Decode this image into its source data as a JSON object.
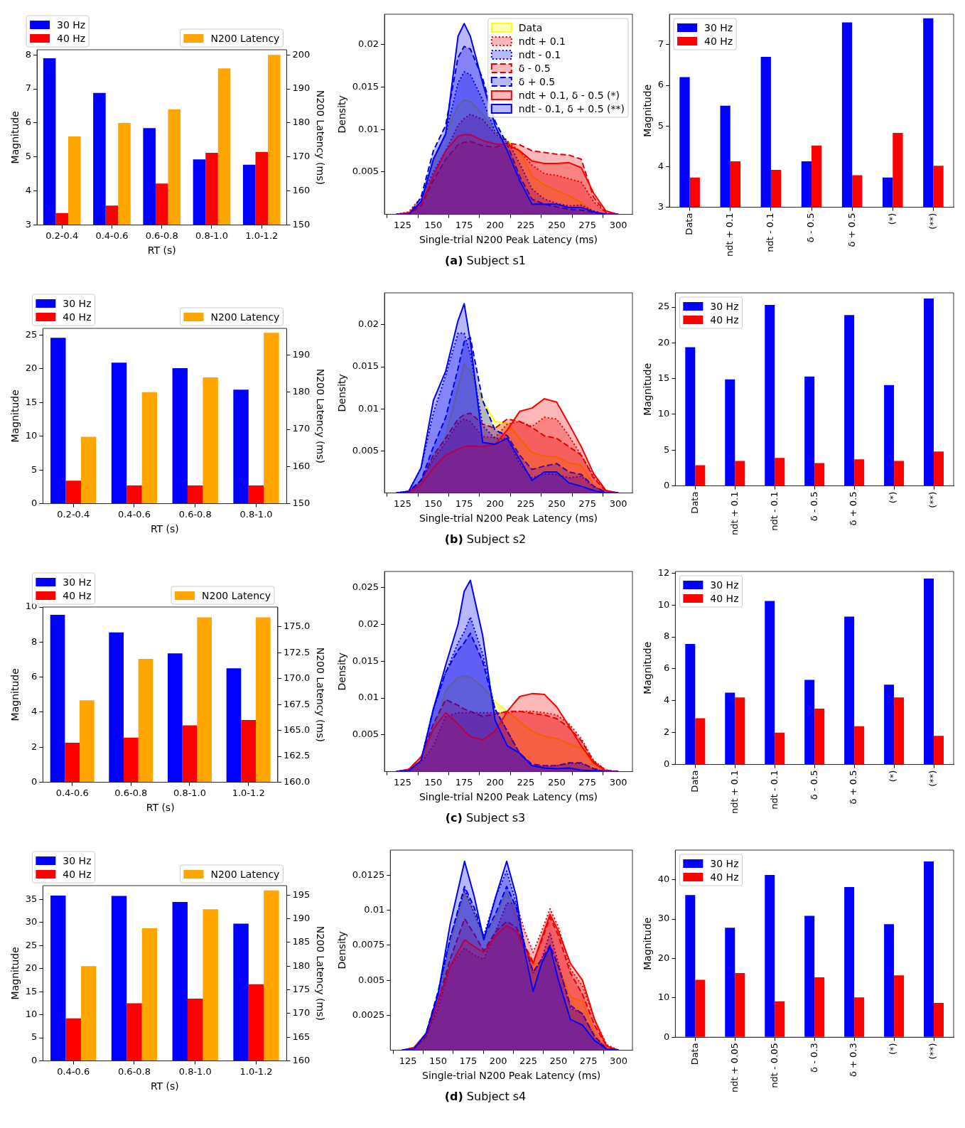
{
  "chart_data": [
    {
      "type": "bar",
      "categories": [
        "0.2-0.4",
        "0.4-0.6",
        "0.6-0.8",
        "0.8-1.0",
        "1.0-1.2"
      ],
      "xlabel": "RT (s)",
      "ylabel": "Magnitude",
      "y2label": "N200 Latency (ms)",
      "series": [
        {
          "name": "30 Hz",
          "color": "#0000ff",
          "values": [
            7.9,
            6.88,
            5.85,
            4.93,
            4.77
          ]
        },
        {
          "name": "40 Hz",
          "color": "#ff0000",
          "values": [
            3.35,
            3.57,
            4.22,
            5.12,
            5.15
          ]
        },
        {
          "name": "N200 Latency",
          "color": "#ffa500",
          "axis": "y2",
          "values": [
            176,
            180,
            184,
            196,
            200
          ]
        }
      ],
      "ylim": [
        3,
        8.15
      ],
      "yticks": [
        3,
        4,
        5,
        6,
        7,
        8
      ],
      "y2lim": [
        150,
        201.5
      ],
      "y2ticks": [
        150,
        160,
        170,
        180,
        190,
        200
      ],
      "legend": "top"
    },
    {
      "type": "area",
      "x": [
        120,
        130,
        140,
        150,
        160,
        170,
        175,
        180,
        190,
        200,
        210,
        220,
        230,
        240,
        250,
        260,
        270,
        280,
        290,
        300
      ],
      "xlabel": "Single-trial N200 Peak Latency (ms)",
      "ylabel": "Density",
      "series": [
        {
          "name": "Data",
          "color": "#ffff00",
          "line_style": "solid",
          "values": [
            0,
            0.0001,
            0.0015,
            0.006,
            0.0095,
            0.0128,
            0.0135,
            0.0133,
            0.0118,
            0.0098,
            0.0087,
            0.0075,
            0.0045,
            0.0035,
            0.0028,
            0.0022,
            0.0014,
            0.0003,
            0,
            0
          ]
        },
        {
          "name": "ndt + 0.1",
          "color": "#ee0000",
          "line_style": "dotted",
          "values": [
            0,
            0.0003,
            0.002,
            0.005,
            0.0075,
            0.0105,
            0.0113,
            0.0118,
            0.0112,
            0.0095,
            0.0085,
            0.0075,
            0.0058,
            0.0048,
            0.0046,
            0.0042,
            0.0038,
            0.0015,
            0.0002,
            0
          ]
        },
        {
          "name": "ndt - 0.1",
          "color": "#0000ee",
          "line_style": "dotted",
          "values": [
            0,
            0,
            0.0015,
            0.0065,
            0.0095,
            0.0155,
            0.0168,
            0.0165,
            0.0135,
            0.0098,
            0.0087,
            0.006,
            0.003,
            0.0018,
            0.0013,
            0.001,
            0.0011,
            0.0004,
            0,
            0
          ]
        },
        {
          "name": "δ - 0.5",
          "color": "#dd0000",
          "line_style": "dashed",
          "values": [
            0,
            0.0001,
            0.001,
            0.004,
            0.0065,
            0.0082,
            0.0085,
            0.0086,
            0.0081,
            0.0079,
            0.0084,
            0.0082,
            0.0075,
            0.0073,
            0.0071,
            0.007,
            0.0065,
            0.002,
            0.0002,
            0
          ]
        },
        {
          "name": "δ + 0.5",
          "color": "#0000dd",
          "line_style": "dashed",
          "values": [
            0,
            0,
            0.002,
            0.0075,
            0.0105,
            0.0185,
            0.0198,
            0.0195,
            0.016,
            0.011,
            0.0082,
            0.0045,
            0.0018,
            0.0012,
            0.0009,
            0.0006,
            0.0005,
            0.0002,
            0,
            0
          ]
        },
        {
          "name": "ndt + 0.1, δ - 0.5 (*)",
          "color": "#ff0000",
          "line_style": "solid",
          "values": [
            0,
            0.0002,
            0.0012,
            0.0045,
            0.0075,
            0.0092,
            0.0094,
            0.0094,
            0.0087,
            0.0083,
            0.0082,
            0.0075,
            0.0063,
            0.006,
            0.006,
            0.0061,
            0.0055,
            0.0025,
            0.0004,
            0
          ]
        },
        {
          "name": "ndt - 0.1, δ + 0.5 (**)",
          "color": "#0000ff",
          "line_style": "solid",
          "values": [
            0,
            0,
            0.0015,
            0.0065,
            0.0095,
            0.021,
            0.0225,
            0.021,
            0.0155,
            0.0105,
            0.0075,
            0.004,
            0.0012,
            0.0012,
            0.0012,
            0.0008,
            0.0008,
            0.0003,
            0,
            0
          ]
        }
      ],
      "xlim": [
        110.3,
        311.5
      ],
      "xticks": [
        125,
        150,
        175,
        200,
        225,
        250,
        275,
        300
      ],
      "ylim": [
        0,
        0.0236
      ],
      "yticks": [
        0.005,
        0.01,
        0.015,
        0.02
      ],
      "legend": "top right",
      "annotations": [
        "(a) Subject s1"
      ]
    },
    {
      "type": "bar",
      "categories": [
        "Data",
        "ndt + 0.1",
        "ndt - 0.1",
        "δ - 0.5",
        "δ + 0.5",
        "(*)",
        "(**)"
      ],
      "ylabel": "Magnitude",
      "series": [
        {
          "name": "30 Hz",
          "color": "#0000ff",
          "values": [
            6.2,
            5.5,
            6.7,
            4.13,
            7.55,
            3.73,
            7.65
          ]
        },
        {
          "name": "40 Hz",
          "color": "#ff0000",
          "values": [
            3.73,
            4.13,
            3.92,
            4.52,
            3.79,
            4.83,
            4.02
          ]
        }
      ],
      "ylim": [
        3,
        7.75
      ],
      "yticks": [
        3,
        4,
        5,
        6,
        7
      ],
      "legend": "top left"
    },
    {
      "type": "bar",
      "categories": [
        "0.2-0.4",
        "0.4-0.6",
        "0.6-0.8",
        "0.8-1.0"
      ],
      "xlabel": "RT (s)",
      "ylabel": "Magnitude",
      "y2label": "N200 Latency (ms)",
      "series": [
        {
          "name": "30 Hz",
          "color": "#0000ff",
          "values": [
            24.6,
            20.9,
            20.1,
            16.9
          ]
        },
        {
          "name": "40 Hz",
          "color": "#ff0000",
          "values": [
            3.4,
            2.7,
            2.7,
            2.7
          ]
        },
        {
          "name": "N200 Latency",
          "color": "#ffa500",
          "axis": "y2",
          "values": [
            168,
            180,
            184,
            196
          ]
        }
      ],
      "ylim": [
        0,
        26
      ],
      "yticks": [
        0,
        5,
        10,
        15,
        20,
        25
      ],
      "y2lim": [
        150,
        197.2
      ],
      "y2ticks": [
        150,
        160,
        170,
        180,
        190
      ],
      "legend": "top"
    },
    {
      "type": "area",
      "x": [
        120,
        130,
        140,
        150,
        160,
        170,
        175,
        180,
        190,
        200,
        210,
        220,
        230,
        240,
        250,
        260,
        270,
        280,
        290,
        300
      ],
      "xlabel": "Single-trial N200 Peak Latency (ms)",
      "ylabel": "Density",
      "series": [
        {
          "color": "#ffff00",
          "line_style": "solid",
          "values": [
            0,
            0.0002,
            0.0012,
            0.004,
            0.0068,
            0.0125,
            0.0153,
            0.0145,
            0.011,
            0.0085,
            0.0083,
            0.0065,
            0.0048,
            0.0044,
            0.0043,
            0.0036,
            0.0033,
            0.001,
            0.0001,
            0
          ]
        },
        {
          "color": "#ee0000",
          "line_style": "dotted",
          "values": [
            0,
            0.0002,
            0.0015,
            0.004,
            0.006,
            0.0083,
            0.0088,
            0.0085,
            0.0067,
            0.0066,
            0.0082,
            0.0085,
            0.0079,
            0.009,
            0.0088,
            0.0068,
            0.0045,
            0.002,
            0.0003,
            0
          ]
        },
        {
          "color": "#0000ee",
          "line_style": "dotted",
          "values": [
            0,
            0.0002,
            0.003,
            0.0095,
            0.014,
            0.019,
            0.019,
            0.0165,
            0.008,
            0.0065,
            0.0065,
            0.0035,
            0.0018,
            0.0023,
            0.0022,
            0.0018,
            0.002,
            0.0007,
            0.0001,
            0
          ]
        },
        {
          "color": "#dd0000",
          "line_style": "dashed",
          "values": [
            0,
            0.0002,
            0.0015,
            0.0045,
            0.0065,
            0.0088,
            0.0093,
            0.0095,
            0.0082,
            0.0077,
            0.0088,
            0.0085,
            0.0078,
            0.0068,
            0.0065,
            0.0055,
            0.0045,
            0.0018,
            0.0002,
            0
          ]
        },
        {
          "color": "#0000dd",
          "line_style": "dashed",
          "values": [
            0,
            0.0001,
            0.0015,
            0.0055,
            0.009,
            0.0148,
            0.018,
            0.0185,
            0.011,
            0.0075,
            0.0068,
            0.0045,
            0.0028,
            0.0032,
            0.0035,
            0.0025,
            0.0022,
            0.0008,
            0.0001,
            0
          ]
        },
        {
          "color": "#ff0000",
          "line_style": "solid",
          "values": [
            0,
            0.0001,
            0.001,
            0.003,
            0.0045,
            0.0052,
            0.0055,
            0.0056,
            0.0055,
            0.0058,
            0.0075,
            0.0097,
            0.0101,
            0.0112,
            0.0108,
            0.0082,
            0.0055,
            0.0023,
            0.0003,
            0
          ]
        },
        {
          "color": "#0000ff",
          "line_style": "solid",
          "values": [
            0,
            0.0002,
            0.003,
            0.011,
            0.0145,
            0.0205,
            0.0225,
            0.018,
            0.006,
            0.0058,
            0.0065,
            0.004,
            0.0015,
            0.0025,
            0.0025,
            0.0012,
            0.0008,
            0.0003,
            0,
            0
          ]
        }
      ],
      "xlim": [
        110.3,
        311.5
      ],
      "xticks": [
        125,
        150,
        175,
        200,
        225,
        250,
        275,
        300
      ],
      "ylim": [
        0,
        0.0238
      ],
      "yticks": [
        0.005,
        0.01,
        0.015,
        0.02
      ],
      "annotations": [
        "(b) Subject s2"
      ]
    },
    {
      "type": "bar",
      "categories": [
        "Data",
        "ndt + 0.1",
        "ndt - 0.1",
        "δ - 0.5",
        "δ + 0.5",
        "(*)",
        "(**)"
      ],
      "ylabel": "Magnitude",
      "series": [
        {
          "name": "30 Hz",
          "color": "#0000ff",
          "values": [
            19.4,
            14.9,
            25.3,
            15.3,
            23.9,
            14.1,
            26.2
          ]
        },
        {
          "name": "40 Hz",
          "color": "#ff0000",
          "values": [
            2.9,
            3.5,
            3.9,
            3.2,
            3.7,
            3.5,
            4.8
          ]
        }
      ],
      "ylim": [
        0,
        27
      ],
      "yticks": [
        0,
        5,
        10,
        15,
        20,
        25
      ],
      "legend": "top left"
    },
    {
      "type": "bar",
      "categories": [
        "0.4-0.6",
        "0.6-0.8",
        "0.8-1.0",
        "1.0-1.2"
      ],
      "xlabel": "RT (s)",
      "ylabel": "Magnitude",
      "y2label": "N200 Latency (ms)",
      "series": [
        {
          "name": "30 Hz",
          "color": "#0000ff",
          "values": [
            9.55,
            8.55,
            7.35,
            6.5
          ]
        },
        {
          "name": "40 Hz",
          "color": "#ff0000",
          "values": [
            2.25,
            2.55,
            3.25,
            3.55
          ]
        },
        {
          "name": "N200 Latency",
          "color": "#ffa500",
          "axis": "y2",
          "values": [
            167.9,
            171.9,
            175.9,
            175.9
          ]
        }
      ],
      "ylim": [
        0,
        10
      ],
      "yticks": [
        0,
        2,
        4,
        6,
        8,
        10
      ],
      "y2lim": [
        160,
        176.9
      ],
      "y2ticks": [
        {
          "value": 160,
          "label": "160.0"
        },
        162.5,
        {
          "value": 165,
          "label": "165.0"
        },
        167.5,
        {
          "value": 170,
          "label": "170.0"
        },
        172.5,
        {
          "value": 175,
          "label": "175.0"
        }
      ],
      "legend": "top"
    },
    {
      "type": "area",
      "x": [
        120,
        130,
        140,
        150,
        160,
        170,
        175,
        180,
        190,
        200,
        210,
        220,
        230,
        240,
        250,
        260,
        270,
        280,
        290,
        300
      ],
      "xlabel": "Single-trial N200 Peak Latency (ms)",
      "ylabel": "Density",
      "series": [
        {
          "color": "#ffff00",
          "line_style": "solid",
          "values": [
            0,
            0.0002,
            0.0015,
            0.0055,
            0.011,
            0.0128,
            0.013,
            0.0128,
            0.0115,
            0.0095,
            0.0082,
            0.0068,
            0.0055,
            0.0048,
            0.0045,
            0.0038,
            0.0032,
            0.001,
            0.0001,
            0
          ]
        },
        {
          "color": "#ee0000",
          "line_style": "dotted",
          "values": [
            0,
            0.0003,
            0.0012,
            0.0035,
            0.0075,
            0.008,
            0.008,
            0.008,
            0.008,
            0.008,
            0.008,
            0.0082,
            0.0082,
            0.008,
            0.0077,
            0.0065,
            0.0045,
            0.0015,
            0.0002,
            0
          ]
        },
        {
          "color": "#0000ee",
          "line_style": "dotted",
          "values": [
            0,
            0.0001,
            0.0015,
            0.0085,
            0.0135,
            0.0175,
            0.019,
            0.021,
            0.016,
            0.0085,
            0.0055,
            0.0025,
            0.0008,
            0.0007,
            0.0008,
            0.0011,
            0.0011,
            0.0004,
            0,
            0
          ]
        },
        {
          "color": "#dd0000",
          "line_style": "dashed",
          "values": [
            0,
            0.0003,
            0.002,
            0.0065,
            0.0098,
            0.009,
            0.0085,
            0.0082,
            0.0075,
            0.0078,
            0.0082,
            0.0082,
            0.0079,
            0.0077,
            0.0072,
            0.006,
            0.0042,
            0.0014,
            0.0002,
            0
          ]
        },
        {
          "color": "#0000dd",
          "line_style": "dashed",
          "values": [
            0,
            0.0001,
            0.0015,
            0.0085,
            0.0135,
            0.0165,
            0.0175,
            0.0188,
            0.015,
            0.0085,
            0.0055,
            0.0025,
            0.001,
            0.0008,
            0.0008,
            0.0012,
            0.0012,
            0.0004,
            0,
            0
          ]
        },
        {
          "color": "#ff0000",
          "line_style": "solid",
          "values": [
            0,
            0.0003,
            0.002,
            0.0058,
            0.008,
            0.0065,
            0.0055,
            0.0048,
            0.0043,
            0.0055,
            0.0082,
            0.0102,
            0.0106,
            0.0105,
            0.0088,
            0.0062,
            0.0035,
            0.0012,
            0.0001,
            0
          ]
        },
        {
          "color": "#0000ff",
          "line_style": "solid",
          "values": [
            0,
            0.0001,
            0.0015,
            0.0085,
            0.0145,
            0.02,
            0.0245,
            0.026,
            0.0185,
            0.007,
            0.0035,
            0.0025,
            0.0008,
            0.0005,
            0.0004,
            0.0005,
            0.0002,
            0.0001,
            0,
            0
          ]
        }
      ],
      "xlim": [
        110.3,
        311.5
      ],
      "xticks": [
        125,
        150,
        175,
        200,
        225,
        250,
        275,
        300
      ],
      "ylim": [
        0,
        0.0272
      ],
      "yticks": [
        0.005,
        0.01,
        0.015,
        0.02,
        0.025
      ],
      "annotations": [
        "(c) Subject s3"
      ]
    },
    {
      "type": "bar",
      "categories": [
        "Data",
        "ndt + 0.1",
        "ndt - 0.1",
        "δ - 0.5",
        "δ + 0.5",
        "(*)",
        "(**)"
      ],
      "ylabel": "Magnitude",
      "series": [
        {
          "name": "30 Hz",
          "color": "#0000ff",
          "values": [
            7.55,
            4.5,
            10.25,
            5.3,
            9.27,
            5.0,
            11.65
          ]
        },
        {
          "name": "40 Hz",
          "color": "#ff0000",
          "values": [
            2.9,
            4.2,
            2.0,
            3.5,
            2.4,
            4.2,
            1.8
          ]
        }
      ],
      "ylim": [
        0,
        12.1
      ],
      "yticks": [
        0,
        2,
        4,
        6,
        8,
        10,
        12
      ],
      "legend": "top left"
    },
    {
      "type": "bar",
      "categories": [
        "0.4-0.6",
        "0.6-0.8",
        "0.8-1.0",
        "1.0-1.2"
      ],
      "xlabel": "RT (s)",
      "ylabel": "Magnitude",
      "y2label": "N200 Latency (ms)",
      "series": [
        {
          "name": "30 Hz",
          "color": "#0000ff",
          "values": [
            35.8,
            35.7,
            34.4,
            29.7
          ]
        },
        {
          "name": "40 Hz",
          "color": "#ff0000",
          "values": [
            9.2,
            12.5,
            13.5,
            16.6
          ]
        },
        {
          "name": "N200 Latency",
          "color": "#ffa500",
          "axis": "y2",
          "values": [
            180,
            188,
            192,
            196
          ]
        }
      ],
      "ylim": [
        0,
        37.95
      ],
      "yticks": [
        0,
        5,
        10,
        15,
        20,
        25,
        30,
        35
      ],
      "y2lim": [
        160,
        197
      ],
      "y2ticks": [
        160,
        165,
        170,
        175,
        180,
        185,
        190,
        195
      ],
      "legend": "top"
    },
    {
      "type": "area",
      "x": [
        120,
        130,
        140,
        150,
        160,
        172,
        180,
        188,
        198,
        207,
        215,
        222,
        229,
        236,
        243,
        250,
        260,
        270,
        280,
        290,
        300
      ],
      "xlabel": "Single-trial N200 Peak Latency (ms)",
      "ylabel": "Density",
      "series": [
        {
          "color": "#ffff00",
          "line_style": "solid",
          "values": [
            0,
            0.0001,
            0.0008,
            0.0035,
            0.0075,
            0.0112,
            0.0098,
            0.0078,
            0.0095,
            0.0113,
            0.0095,
            0.0075,
            0.0061,
            0.0063,
            0.0069,
            0.006,
            0.0038,
            0.0035,
            0.0012,
            0.0001,
            0
          ]
        },
        {
          "color": "#ee0000",
          "line_style": "dotted",
          "values": [
            0,
            0.0002,
            0.001,
            0.003,
            0.006,
            0.0073,
            0.0068,
            0.0065,
            0.0085,
            0.0105,
            0.0105,
            0.0085,
            0.007,
            0.0085,
            0.0101,
            0.0088,
            0.0058,
            0.0046,
            0.0022,
            0.0004,
            0
          ]
        },
        {
          "color": "#0000ee",
          "line_style": "dotted",
          "values": [
            0,
            0.0001,
            0.0012,
            0.004,
            0.008,
            0.0115,
            0.0098,
            0.0082,
            0.011,
            0.0128,
            0.0105,
            0.0075,
            0.0055,
            0.0065,
            0.0084,
            0.0062,
            0.003,
            0.0026,
            0.001,
            0.0001,
            0
          ]
        },
        {
          "color": "#dd0000",
          "line_style": "dashed",
          "values": [
            0,
            0.0001,
            0.001,
            0.0035,
            0.0065,
            0.0094,
            0.0083,
            0.0071,
            0.0085,
            0.0092,
            0.0088,
            0.0075,
            0.0063,
            0.0078,
            0.0095,
            0.0082,
            0.0055,
            0.004,
            0.0018,
            0.0003,
            0
          ]
        },
        {
          "color": "#0000dd",
          "line_style": "dashed",
          "values": [
            0,
            0.0001,
            0.0012,
            0.0042,
            0.008,
            0.0117,
            0.0102,
            0.0081,
            0.0098,
            0.0117,
            0.0102,
            0.0075,
            0.0056,
            0.0065,
            0.0075,
            0.006,
            0.0032,
            0.0026,
            0.001,
            0.0001,
            0
          ]
        },
        {
          "color": "#ff0000",
          "line_style": "solid",
          "values": [
            0,
            0.0002,
            0.0012,
            0.0035,
            0.006,
            0.0079,
            0.0074,
            0.007,
            0.0082,
            0.0089,
            0.0085,
            0.0072,
            0.0062,
            0.008,
            0.0097,
            0.0085,
            0.0062,
            0.005,
            0.0022,
            0.0003,
            0
          ]
        },
        {
          "color": "#0000ff",
          "line_style": "solid",
          "values": [
            0,
            0.0001,
            0.0012,
            0.004,
            0.009,
            0.0135,
            0.011,
            0.0079,
            0.011,
            0.0135,
            0.011,
            0.007,
            0.0042,
            0.0062,
            0.0074,
            0.005,
            0.0022,
            0.0018,
            0.0007,
            0.0001,
            0
          ]
        }
      ],
      "xlim": [
        110.3,
        311.5
      ],
      "xticks": [
        125,
        150,
        175,
        200,
        225,
        250,
        275,
        300
      ],
      "ylim": [
        0,
        0.0143
      ],
      "yticks": [
        0.0025,
        0.005,
        0.0075,
        0.01,
        0.0125
      ],
      "annotations": [
        "(d) Subject s4"
      ]
    },
    {
      "type": "bar",
      "categories": [
        "Data",
        "ndt + 0.05",
        "ndt - 0.05",
        "δ - 0.3",
        "δ + 0.3",
        "(*)",
        "(**)"
      ],
      "ylabel": "Magnitude",
      "series": [
        {
          "name": "30 Hz",
          "color": "#0000ff",
          "values": [
            36.1,
            27.8,
            41.2,
            30.8,
            38.1,
            28.7,
            44.6
          ]
        },
        {
          "name": "40 Hz",
          "color": "#ff0000",
          "values": [
            14.6,
            16.3,
            9.1,
            15.2,
            10.1,
            15.7,
            8.7
          ]
        }
      ],
      "ylim": [
        0,
        47.5
      ],
      "yticks": [
        0,
        10,
        20,
        30,
        40
      ],
      "legend": "top left"
    }
  ]
}
